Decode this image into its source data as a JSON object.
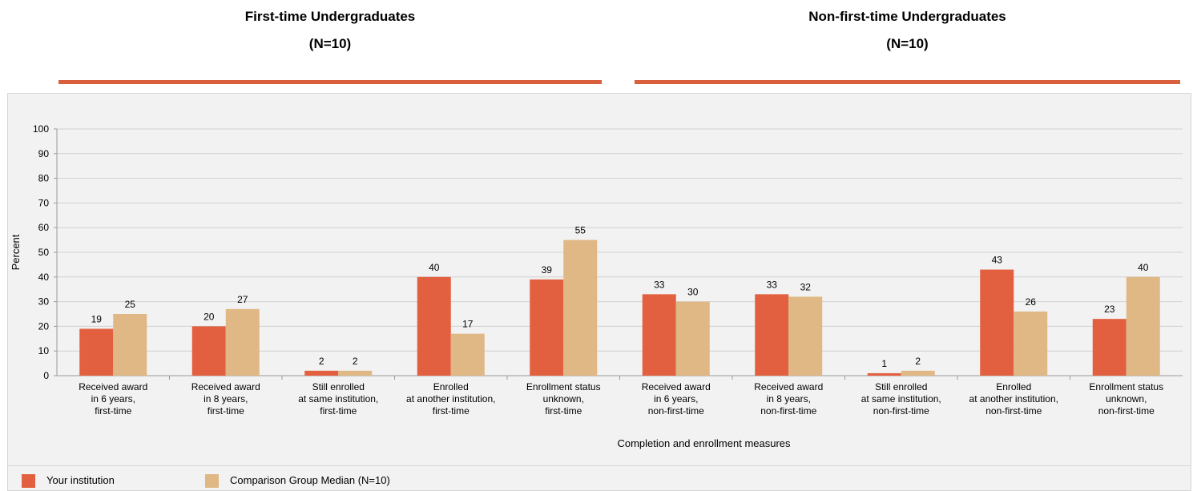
{
  "groups": [
    {
      "title": "First-time Undergraduates",
      "n": "(N=10)"
    },
    {
      "title": "Non-first-time Undergraduates",
      "n": "(N=10)"
    }
  ],
  "colors": {
    "institution": "#e2603f",
    "comparison": "#dfb885",
    "rule": "#d9603f",
    "grid": "#d0d0d0",
    "panel": "#f2f2f2"
  },
  "legend": {
    "institution_label": "Your institution",
    "comparison_label": "Comparison Group Median (N=10)"
  },
  "chart_data": {
    "type": "bar",
    "xlabel": "Completion and enrollment measures",
    "ylabel": "Percent",
    "ylim": [
      0,
      100
    ],
    "yticks": [
      0,
      10,
      20,
      30,
      40,
      50,
      60,
      70,
      80,
      90,
      100
    ],
    "grid": true,
    "legend_position": "bottom",
    "categories": [
      [
        "Received award",
        "in 6 years,",
        "first-time"
      ],
      [
        "Received award",
        "in 8 years,",
        "first-time"
      ],
      [
        "Still enrolled",
        "at same institution,",
        "first-time"
      ],
      [
        "Enrolled",
        "at another institution,",
        "first-time"
      ],
      [
        "Enrollment status",
        "unknown,",
        "first-time"
      ],
      [
        "Received award",
        "in 6 years,",
        "non-first-time"
      ],
      [
        "Received award",
        "in 8 years,",
        "non-first-time"
      ],
      [
        "Still enrolled",
        "at same institution,",
        "non-first-time"
      ],
      [
        "Enrolled",
        "at another institution,",
        "non-first-time"
      ],
      [
        "Enrollment status",
        "unknown,",
        "non-first-time"
      ]
    ],
    "series": [
      {
        "name": "Your institution",
        "values": [
          19,
          20,
          2,
          40,
          39,
          33,
          33,
          1,
          43,
          23
        ]
      },
      {
        "name": "Comparison Group Median (N=10)",
        "values": [
          25,
          27,
          2,
          17,
          55,
          30,
          32,
          2,
          26,
          40
        ]
      }
    ]
  }
}
